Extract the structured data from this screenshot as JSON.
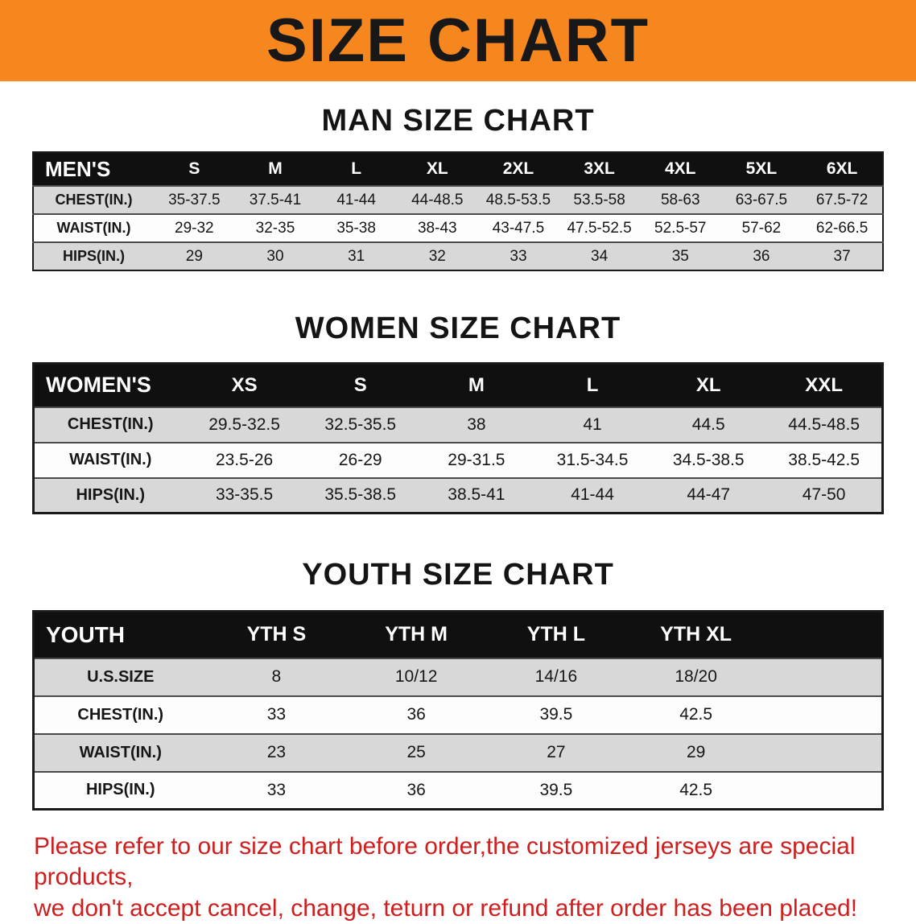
{
  "colors": {
    "banner_orange": "#f6871f",
    "disclaimer_red": "#ce1e1e",
    "table_header_bg": "#101010",
    "row_gray": "#d8d8d8"
  },
  "banner": {
    "title": "SIZE CHART"
  },
  "sections": [
    {
      "heading": "MAN SIZE CHART",
      "table": {
        "header": [
          "MEN'S",
          "S",
          "M",
          "L",
          "XL",
          "2XL",
          "3XL",
          "4XL",
          "5XL",
          "6XL"
        ],
        "rows": [
          [
            "CHEST(IN.)",
            "35-37.5",
            "37.5-41",
            "41-44",
            "44-48.5",
            "48.5-53.5",
            "53.5-58",
            "58-63",
            "63-67.5",
            "67.5-72"
          ],
          [
            "WAIST(IN.)",
            "29-32",
            "32-35",
            "35-38",
            "38-43",
            "43-47.5",
            "47.5-52.5",
            "52.5-57",
            "57-62",
            "62-66.5"
          ],
          [
            "HIPS(IN.)",
            "29",
            "30",
            "31",
            "32",
            "33",
            "34",
            "35",
            "36",
            "37"
          ]
        ]
      }
    },
    {
      "heading": "WOMEN SIZE CHART",
      "table": {
        "header": [
          "WOMEN'S",
          "XS",
          "S",
          "M",
          "L",
          "XL",
          "XXL"
        ],
        "rows": [
          [
            "CHEST(IN.)",
            "29.5-32.5",
            "32.5-35.5",
            "38",
            "41",
            "44.5",
            "44.5-48.5"
          ],
          [
            "WAIST(IN.)",
            "23.5-26",
            "26-29",
            "29-31.5",
            "31.5-34.5",
            "34.5-38.5",
            "38.5-42.5"
          ],
          [
            "HIPS(IN.)",
            "33-35.5",
            "35.5-38.5",
            "38.5-41",
            "41-44",
            "44-47",
            "47-50"
          ]
        ]
      }
    },
    {
      "heading": "YOUTH SIZE CHART",
      "table": {
        "header": [
          "YOUTH",
          "YTH S",
          "YTH M",
          "YTH L",
          "YTH XL"
        ],
        "rows": [
          [
            "U.S.SIZE",
            "8",
            "10/12",
            "14/16",
            "18/20"
          ],
          [
            "CHEST(IN.)",
            "33",
            "36",
            "39.5",
            "42.5"
          ],
          [
            "WAIST(IN.)",
            "23",
            "25",
            "27",
            "29"
          ],
          [
            "HIPS(IN.)",
            "33",
            "36",
            "39.5",
            "42.5"
          ]
        ]
      }
    }
  ],
  "disclaimer": {
    "line1": "Please refer to our size chart before order,the customized jerseys are special products,",
    "line2": "we don't accept cancel, change, teturn or refund after order has been placed!"
  }
}
